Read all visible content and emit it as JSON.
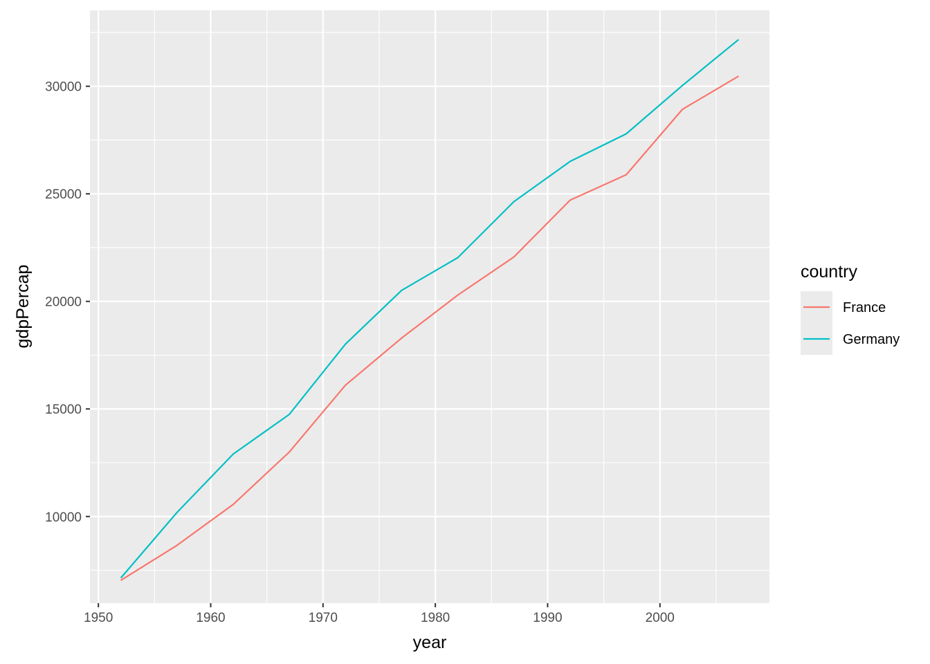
{
  "chart_data": {
    "type": "line",
    "title": "",
    "xlabel": "year",
    "ylabel": "gdpPercap",
    "x": [
      1952,
      1957,
      1962,
      1967,
      1972,
      1977,
      1982,
      1987,
      1992,
      1997,
      2002,
      2007
    ],
    "series": [
      {
        "name": "France",
        "color": "#F8766D",
        "values": [
          7030,
          8660,
          10560,
          12999,
          16107,
          18293,
          20294,
          22066,
          24704,
          25890,
          28926,
          30470
        ]
      },
      {
        "name": "Germany",
        "color": "#00BFC4",
        "values": [
          7144,
          10188,
          12902,
          14746,
          18016,
          20513,
          22032,
          24639,
          26505,
          27789,
          30036,
          32170
        ]
      }
    ],
    "xlim": [
      1949.25,
      2009.75
    ],
    "ylim": [
      5973,
      33528
    ],
    "x_ticks": [
      1950,
      1960,
      1970,
      1980,
      1990,
      2000
    ],
    "x_minor": [
      1955,
      1965,
      1975,
      1985,
      1995,
      2005
    ],
    "y_ticks": [
      10000,
      15000,
      20000,
      25000,
      30000
    ],
    "y_minor": [
      7500,
      12500,
      17500,
      22500,
      27500,
      32500
    ],
    "grid": true,
    "legend": {
      "title": "country",
      "placement": "right"
    },
    "panel_color": "#EBEBEB",
    "grid_color": "#FFFFFF"
  }
}
